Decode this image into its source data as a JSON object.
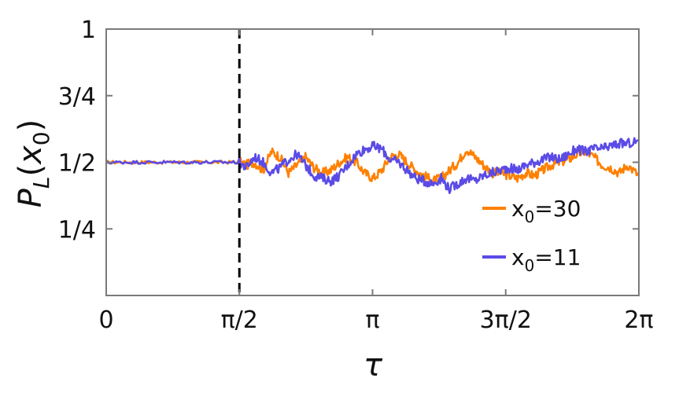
{
  "chart_data": {
    "type": "line",
    "xlabel": "τ",
    "ylabel": "P_L(x_0)",
    "xlim": [
      0,
      6.2832
    ],
    "ylim": [
      0,
      1
    ],
    "xticks": [
      {
        "value": 0,
        "label": "0"
      },
      {
        "value": 1.5708,
        "label": "π/2"
      },
      {
        "value": 3.1416,
        "label": "π"
      },
      {
        "value": 4.7124,
        "label": "3π/2"
      },
      {
        "value": 6.2832,
        "label": "2π"
      }
    ],
    "yticks": [
      {
        "value": 0.25,
        "label": "1/4"
      },
      {
        "value": 0.5,
        "label": "1/2"
      },
      {
        "value": 0.75,
        "label": "3/4"
      },
      {
        "value": 1,
        "label": "1"
      }
    ],
    "reference_line": {
      "x": 1.5708,
      "style": "dashed",
      "color": "#000000"
    },
    "grid": false,
    "legend_position": "bottom-right",
    "series": [
      {
        "name": "x0=30",
        "legend_main": "x",
        "legend_sub": "0",
        "legend_rest": "=30",
        "color": "#ff8000",
        "x": [
          0,
          0.2,
          0.4,
          0.6,
          0.8,
          1.0,
          1.2,
          1.4,
          1.5708,
          1.65,
          1.75,
          1.85,
          1.95,
          2.05,
          2.15,
          2.25,
          2.35,
          2.45,
          2.55,
          2.65,
          2.75,
          2.85,
          2.95,
          3.05,
          3.15,
          3.25,
          3.35,
          3.45,
          3.55,
          3.65,
          3.75,
          3.85,
          3.95,
          4.05,
          4.15,
          4.25,
          4.35,
          4.45,
          4.55,
          4.65,
          4.75,
          4.85,
          4.95,
          5.05,
          5.15,
          5.25,
          5.35,
          5.45,
          5.55,
          5.65,
          5.75,
          5.85,
          5.95,
          6.05,
          6.15,
          6.2832
        ],
        "y": [
          0.5,
          0.5,
          0.5,
          0.5,
          0.5,
          0.5,
          0.5,
          0.5,
          0.5,
          0.49,
          0.5,
          0.47,
          0.54,
          0.52,
          0.46,
          0.49,
          0.52,
          0.48,
          0.46,
          0.47,
          0.5,
          0.52,
          0.5,
          0.46,
          0.44,
          0.47,
          0.52,
          0.53,
          0.5,
          0.47,
          0.45,
          0.43,
          0.44,
          0.47,
          0.5,
          0.55,
          0.52,
          0.49,
          0.46,
          0.46,
          0.45,
          0.44,
          0.46,
          0.45,
          0.47,
          0.49,
          0.5,
          0.51,
          0.53,
          0.54,
          0.52,
          0.49,
          0.48,
          0.46,
          0.49,
          0.45
        ]
      },
      {
        "name": "x0=11",
        "legend_main": "x",
        "legend_sub": "0",
        "legend_rest": "=11",
        "color": "#5b4be6",
        "x": [
          0,
          0.2,
          0.4,
          0.6,
          0.8,
          1.0,
          1.2,
          1.4,
          1.5708,
          1.65,
          1.75,
          1.85,
          1.95,
          2.05,
          2.15,
          2.25,
          2.35,
          2.45,
          2.55,
          2.65,
          2.75,
          2.85,
          2.95,
          3.05,
          3.15,
          3.25,
          3.35,
          3.45,
          3.55,
          3.65,
          3.75,
          3.85,
          3.95,
          4.05,
          4.15,
          4.25,
          4.35,
          4.45,
          4.55,
          4.65,
          4.75,
          4.85,
          4.95,
          5.05,
          5.15,
          5.25,
          5.35,
          5.45,
          5.55,
          5.65,
          5.75,
          5.85,
          5.95,
          6.05,
          6.15,
          6.2832
        ],
        "y": [
          0.5,
          0.5,
          0.5,
          0.5,
          0.5,
          0.5,
          0.5,
          0.5,
          0.5,
          0.48,
          0.52,
          0.5,
          0.46,
          0.48,
          0.51,
          0.53,
          0.49,
          0.45,
          0.44,
          0.43,
          0.45,
          0.49,
          0.53,
          0.55,
          0.56,
          0.55,
          0.51,
          0.5,
          0.47,
          0.44,
          0.43,
          0.42,
          0.44,
          0.4,
          0.42,
          0.44,
          0.43,
          0.45,
          0.46,
          0.47,
          0.48,
          0.47,
          0.49,
          0.5,
          0.51,
          0.52,
          0.51,
          0.53,
          0.55,
          0.54,
          0.55,
          0.55,
          0.56,
          0.57,
          0.57,
          0.58
        ]
      }
    ]
  }
}
